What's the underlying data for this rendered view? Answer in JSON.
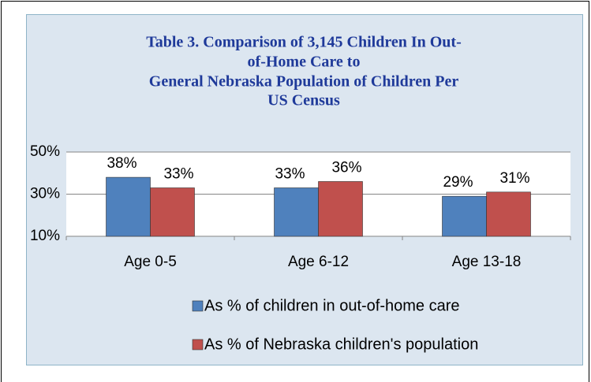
{
  "chart_data": {
    "type": "bar",
    "title": [
      "Table 3. Comparison of 3,145 Children In Out-",
      "of-Home Care to",
      "General Nebraska Population of Children Per",
      "US Census"
    ],
    "categories": [
      "Age 0-5",
      "Age 6-12",
      "Age 13-18"
    ],
    "series": [
      {
        "name": "As % of children in out-of-home care",
        "color": "#4f81bd",
        "values": [
          38,
          33,
          29
        ],
        "value_labels": [
          "38%",
          "33%",
          "29%"
        ]
      },
      {
        "name": "As % of Nebraska children's population",
        "color": "#c0504d",
        "values": [
          33,
          36,
          31
        ],
        "value_labels": [
          "33%",
          "36%",
          "31%"
        ]
      }
    ],
    "ylim": [
      10,
      50
    ],
    "yticks": [
      {
        "value": 10,
        "label": "10%"
      },
      {
        "value": 30,
        "label": "30%"
      },
      {
        "value": 50,
        "label": "50%"
      }
    ],
    "grid": true,
    "legend": "bottom"
  }
}
